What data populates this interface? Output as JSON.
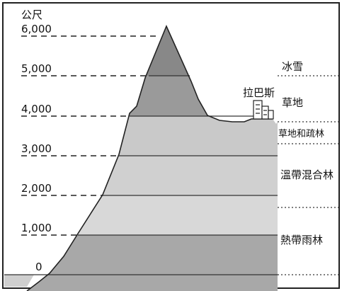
{
  "axis": {
    "unit": "公尺",
    "ticks": [
      "6,000",
      "5,000",
      "4,000",
      "3,000",
      "2,000",
      "1,000",
      "0"
    ]
  },
  "zones": {
    "ice_snow": "冰雪",
    "grassland": "草地",
    "grass_sparse_forest": "草地和疏林",
    "temperate_mixed_forest": "溫帶混合林",
    "tropical_rainforest": "熱帶雨林"
  },
  "city": {
    "name": "拉巴斯"
  },
  "colors": {
    "band_top": "#888888",
    "band_high": "#9a9a9a",
    "band_mid_upper": "#c9c9c9",
    "band_mid_lower": "#d8d8d8",
    "band_low": "#a8a8a8",
    "ground_left": "#cfcfcf"
  }
}
